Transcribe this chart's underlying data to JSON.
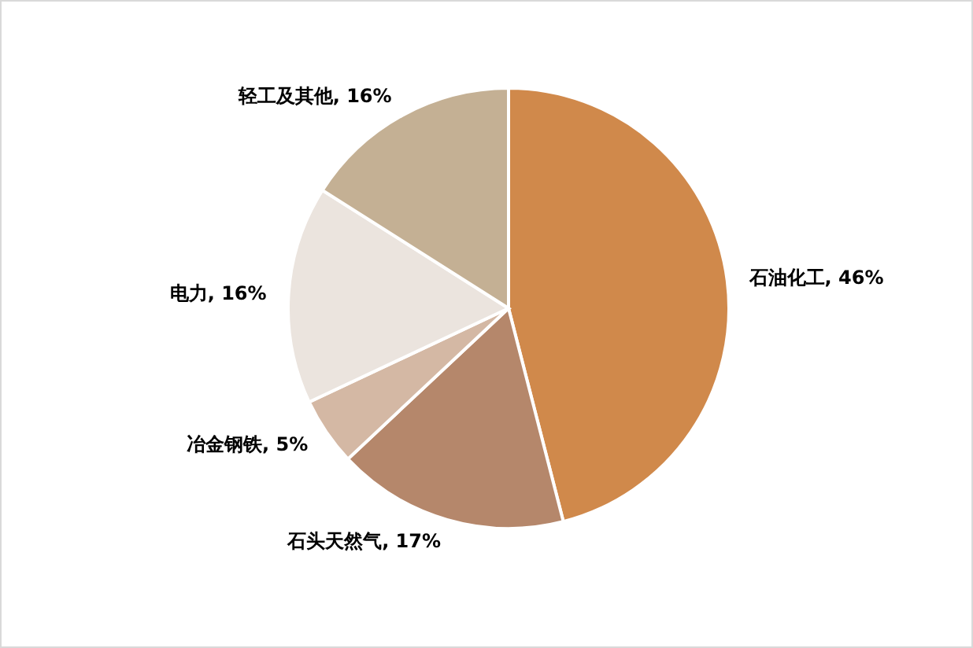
{
  "chart_data": {
    "type": "pie",
    "categories": [
      "石油化工",
      "石头天然气",
      "冶金钢铁",
      "电力",
      "轻工及其他"
    ],
    "values": [
      46,
      17,
      5,
      16,
      16
    ],
    "value_labels": [
      "46%",
      "17%",
      "5%",
      "16%",
      "16%"
    ],
    "colors": [
      "#d0894b",
      "#b5876b",
      "#d4b8a4",
      "#ebe4de",
      "#c4b094"
    ]
  }
}
